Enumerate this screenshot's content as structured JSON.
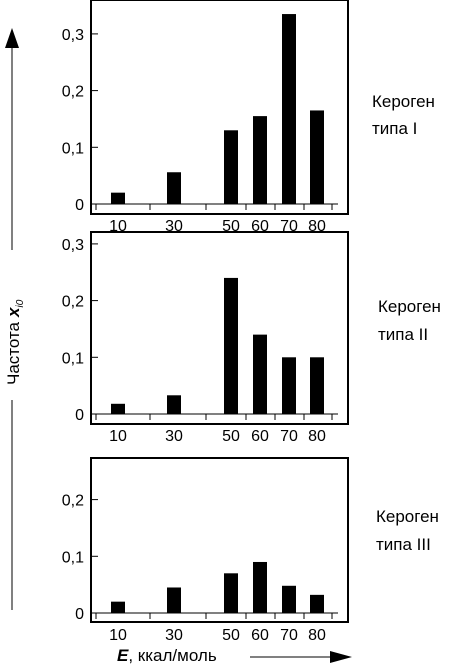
{
  "ylabel": "Частота",
  "ylabel_symbol": "x",
  "ylabel_sub": "i0",
  "xlabel_symbol": "E",
  "xlabel_rest": ", ккал/моль",
  "chart_data": [
    {
      "type": "bar",
      "label": "Кероген типа I",
      "label_lines": [
        "Кероген",
        "типа I"
      ],
      "x": [
        10,
        30,
        50,
        60,
        70,
        80
      ],
      "values": [
        0.02,
        0.056,
        0.13,
        0.155,
        0.335,
        0.165
      ],
      "ylim": [
        0,
        0.35
      ],
      "yticks": [
        0,
        0.1,
        0.2,
        0.3
      ],
      "ytick_labels": [
        "0",
        "0,1",
        "0,2",
        "0,3"
      ],
      "xtick_labels": [
        "10",
        "30",
        "50",
        "60",
        "70",
        "80"
      ]
    },
    {
      "type": "bar",
      "label": "Кероген типа II",
      "label_lines": [
        "Кероген",
        "типа II"
      ],
      "x": [
        10,
        30,
        50,
        60,
        70,
        80
      ],
      "values": [
        0.018,
        0.033,
        0.24,
        0.14,
        0.1,
        0.1
      ],
      "ylim": [
        0,
        0.3
      ],
      "yticks": [
        0,
        0.1,
        0.2,
        0.3
      ],
      "ytick_labels": [
        "0",
        "0,1",
        "0,2",
        "0,3"
      ],
      "xtick_labels": [
        "10",
        "30",
        "50",
        "60",
        "70",
        "80"
      ]
    },
    {
      "type": "bar",
      "label": "Кероген типа III",
      "label_lines": [
        "Кероген",
        "типа III"
      ],
      "x": [
        10,
        30,
        50,
        60,
        70,
        80
      ],
      "values": [
        0.02,
        0.045,
        0.07,
        0.09,
        0.048,
        0.032
      ],
      "ylim": [
        0,
        0.27
      ],
      "yticks": [
        0,
        0.1,
        0.2
      ],
      "ytick_labels": [
        "0",
        "0,1",
        "0,2"
      ],
      "xtick_labels": [
        "10",
        "30",
        "50",
        "60",
        "70",
        "80"
      ]
    }
  ]
}
